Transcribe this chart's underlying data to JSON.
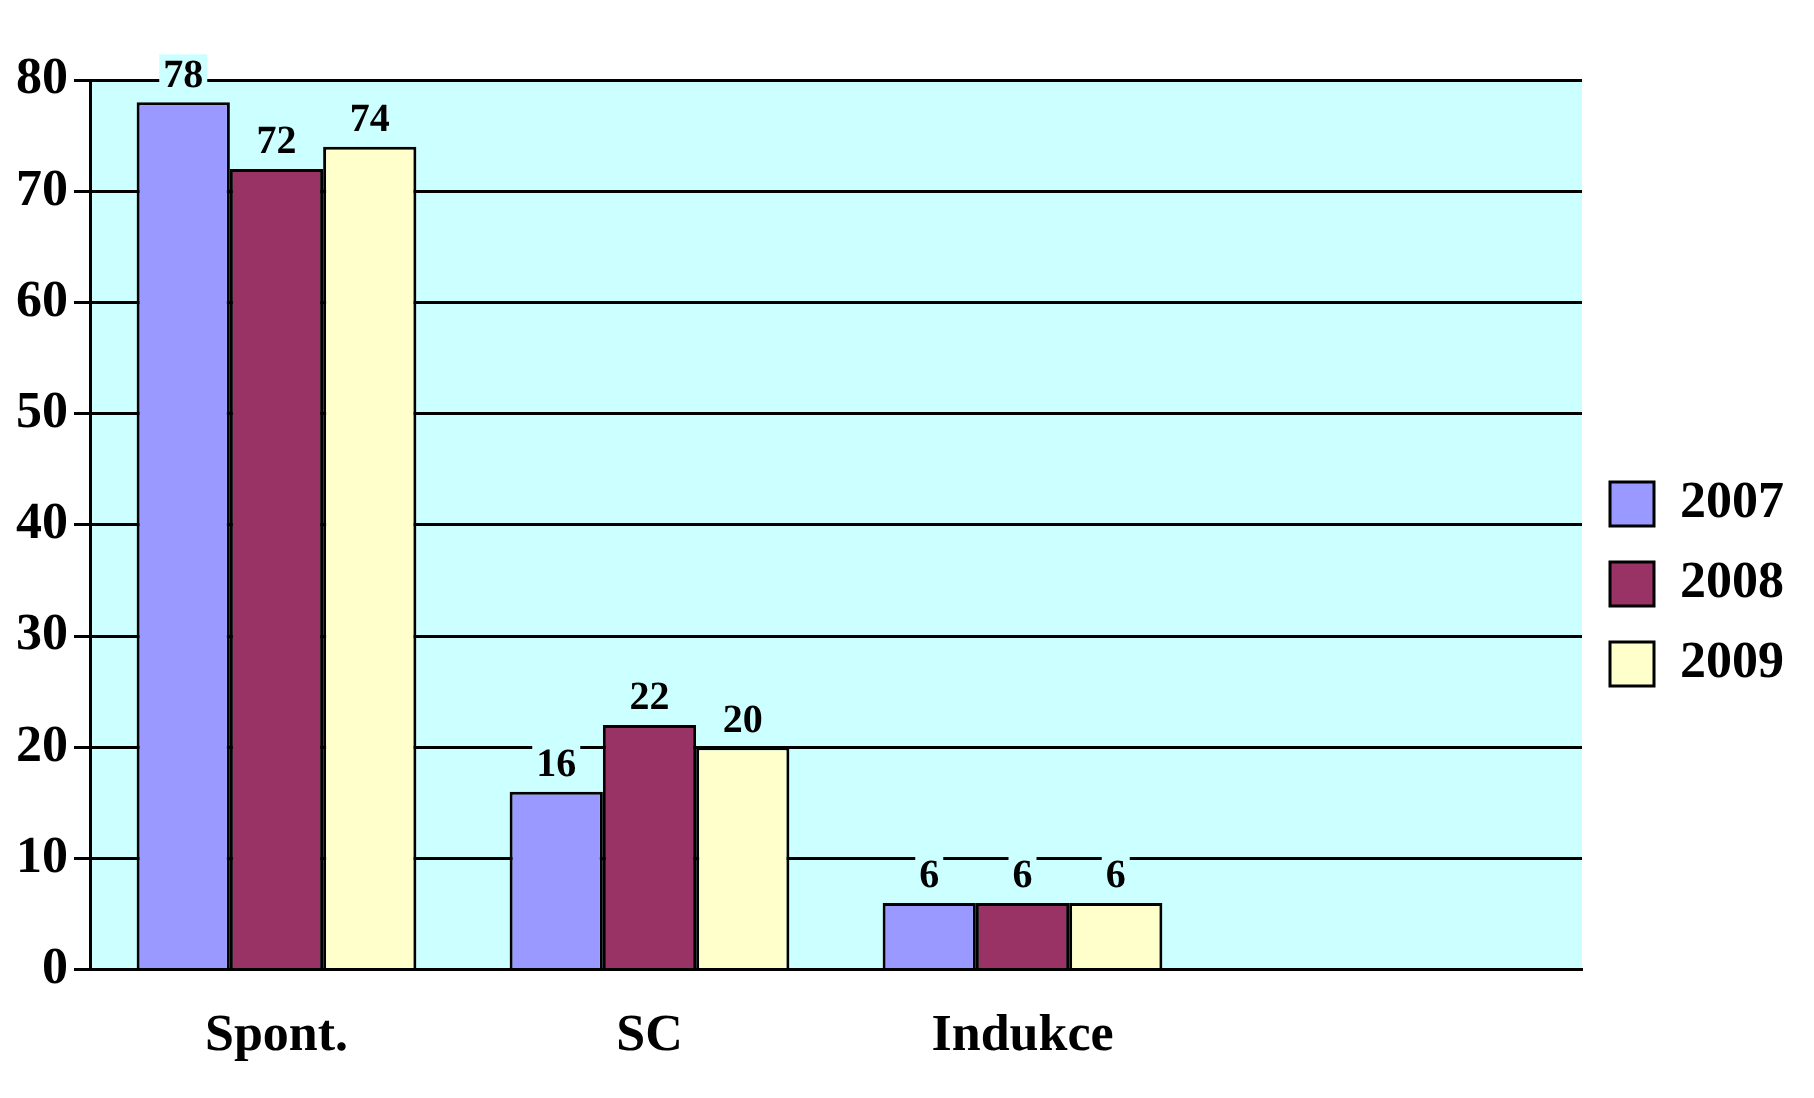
{
  "chart_data": {
    "type": "bar",
    "categories": [
      "Spont.",
      "SC",
      "Indukce",
      null
    ],
    "series": [
      {
        "name": "2007",
        "color": "#9999ff",
        "values": [
          78,
          16,
          6,
          null
        ]
      },
      {
        "name": "2008",
        "color": "#993366",
        "values": [
          72,
          22,
          6,
          null
        ]
      },
      {
        "name": "2009",
        "color": "#ffffcc",
        "values": [
          74,
          20,
          6,
          null
        ]
      }
    ],
    "ylim": [
      0,
      80
    ],
    "yticks": [
      0,
      10,
      20,
      30,
      40,
      50,
      60,
      70,
      80
    ],
    "grid": "y",
    "legend": "right",
    "data_labels": true
  }
}
